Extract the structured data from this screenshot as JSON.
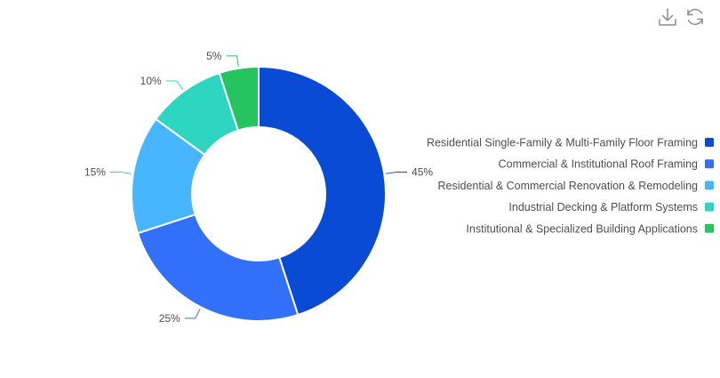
{
  "toolbar": {
    "download_icon": "download-icon",
    "refresh_icon": "refresh-icon",
    "icon_color": "#8c8c8c"
  },
  "chart_data": {
    "type": "pie",
    "donut": true,
    "legend_position": "right",
    "label_format": "percent",
    "slices": [
      {
        "label": "Residential Single-Family & Multi-Family Floor Framing",
        "value": 45,
        "display": "45%",
        "color": "#0a4bd6"
      },
      {
        "label": "Commercial & Institutional Roof Framing",
        "value": 25,
        "display": "25%",
        "color": "#3370fa"
      },
      {
        "label": "Residential & Commercial Renovation & Remodeling",
        "value": 15,
        "display": "15%",
        "color": "#47b5ff"
      },
      {
        "label": "Industrial Decking & Platform Systems",
        "value": 10,
        "display": "10%",
        "color": "#2ed6c1"
      },
      {
        "label": "Institutional & Specialized Building Applications",
        "value": 5,
        "display": "5%",
        "color": "#26c45e"
      }
    ]
  }
}
